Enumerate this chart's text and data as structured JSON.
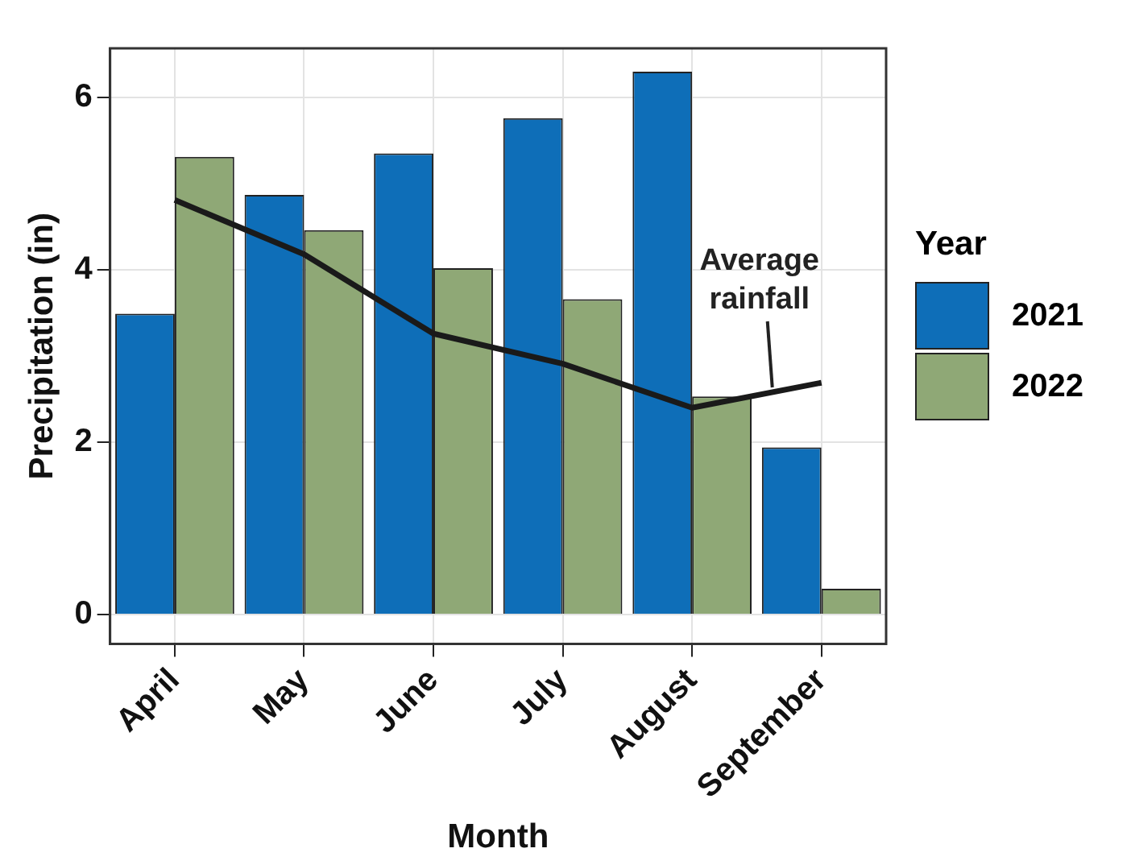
{
  "chart_data": {
    "type": "bar",
    "xlabel": "Month",
    "ylabel": "Precipitation (in)",
    "legend_title": "Year",
    "categories": [
      "April",
      "May",
      "June",
      "July",
      "August",
      "September"
    ],
    "series": [
      {
        "name": "2021",
        "color": "#0e6eb8",
        "values": [
          3.49,
          4.87,
          5.35,
          5.76,
          6.3,
          1.94
        ]
      },
      {
        "name": "2022",
        "color": "#8fa876",
        "values": [
          5.31,
          4.46,
          4.02,
          3.66,
          2.53,
          0.3
        ]
      },
      {
        "name": "Average rainfall",
        "type": "line",
        "color": "#1a1a1a",
        "values": [
          4.81,
          4.18,
          3.26,
          2.91,
          2.4,
          2.69
        ]
      }
    ],
    "ylim": [
      -0.34,
      6.57
    ],
    "yticks": [
      0,
      2,
      4,
      6
    ],
    "grid": true,
    "legend": "right"
  }
}
